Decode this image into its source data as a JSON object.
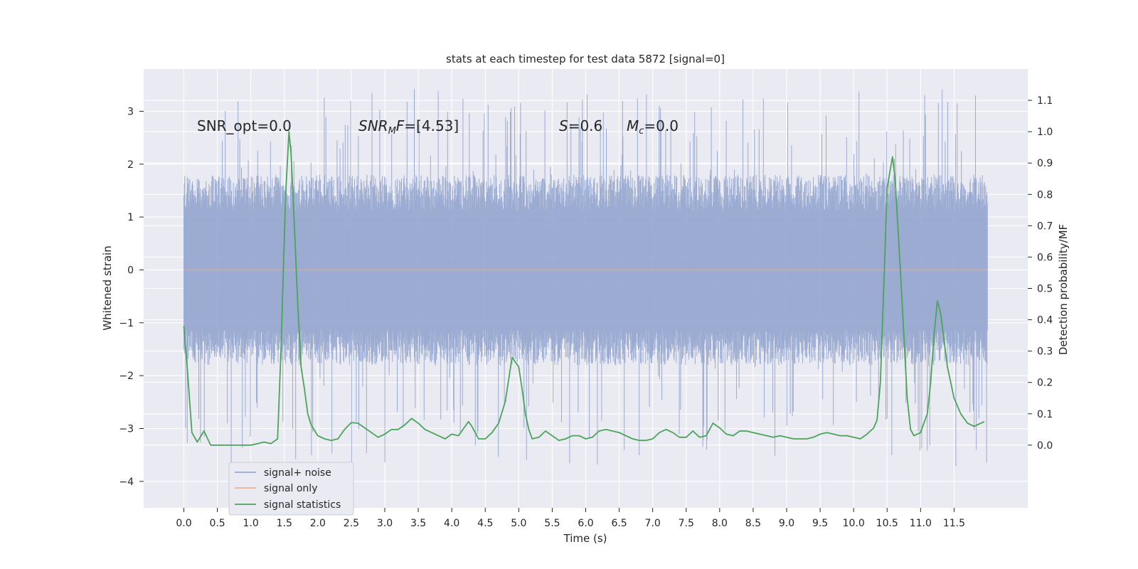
{
  "chart_data": {
    "type": "line",
    "title": "stats at each timestep for test data 5872 [signal=0]",
    "xlabel": "Time (s)",
    "ylabel_left": "Whitened strain",
    "ylabel_right": "Detection probability/MF",
    "xlim": [
      -0.6,
      12.6
    ],
    "ylim_left": [
      -4.5,
      3.8
    ],
    "ylim_right": [
      -0.2,
      1.2
    ],
    "xticks": [
      0.0,
      0.5,
      1.0,
      1.5,
      2.0,
      2.5,
      3.0,
      3.5,
      4.0,
      4.5,
      5.0,
      5.5,
      6.0,
      6.5,
      7.0,
      7.5,
      8.0,
      8.5,
      9.0,
      9.5,
      10.0,
      10.5,
      11.0,
      11.5
    ],
    "xtick_labels": [
      "0.0",
      "0.5",
      "1.0",
      "1.5",
      "2.0",
      "2.5",
      "3.0",
      "3.5",
      "4.0",
      "4.5",
      "5.0",
      "5.5",
      "6.0",
      "6.5",
      "7.0",
      "7.5",
      "8.0",
      "8.5",
      "9.0",
      "9.5",
      "10.0",
      "10.5",
      "11.0",
      "11.5"
    ],
    "yticks_left": [
      3,
      2,
      1,
      0,
      -1,
      -2,
      -3,
      -4
    ],
    "ytick_labels_left": [
      "3",
      "2",
      "1",
      "0",
      "−1",
      "−2",
      "−3",
      "−4"
    ],
    "yticks_right": [
      1.1,
      1.0,
      0.9,
      0.8,
      0.7,
      0.6,
      0.5,
      0.4,
      0.3,
      0.2,
      0.1,
      0.0
    ],
    "ytick_labels_right": [
      "1.1",
      "1.0",
      "0.9",
      "0.8",
      "0.7",
      "0.6",
      "0.5",
      "0.4",
      "0.3",
      "0.2",
      "0.1",
      "0.0"
    ],
    "grid": true,
    "legend_position": "lower-left",
    "annotations": [
      "SNR_opt=0.0",
      "SNR_MF=[4.53]",
      "S=0.6",
      "M_c=0.0"
    ],
    "series": [
      {
        "name": "signal+ noise",
        "color": "#8da0cb",
        "axis": "left",
        "kind": "dense-noise",
        "x_range": [
          0.0,
          12.0
        ],
        "typical_envelope": [
          -1.5,
          1.5
        ],
        "extremes": [
          -4.1,
          3.5
        ]
      },
      {
        "name": "signal only",
        "color": "#e8a88a",
        "axis": "left",
        "x": [
          0.0,
          12.0
        ],
        "y": [
          0.0,
          0.0
        ]
      },
      {
        "name": "signal statistics",
        "color": "#4aa45a",
        "axis": "right",
        "x": [
          0.0,
          0.05,
          0.12,
          0.2,
          0.3,
          0.4,
          0.5,
          0.7,
          0.9,
          1.0,
          1.1,
          1.2,
          1.3,
          1.4,
          1.45,
          1.52,
          1.57,
          1.6,
          1.65,
          1.7,
          1.75,
          1.8,
          1.85,
          1.9,
          2.0,
          2.1,
          2.2,
          2.3,
          2.4,
          2.5,
          2.6,
          2.7,
          2.8,
          2.9,
          3.0,
          3.1,
          3.2,
          3.3,
          3.4,
          3.5,
          3.6,
          3.7,
          3.8,
          3.9,
          4.0,
          4.1,
          4.2,
          4.25,
          4.3,
          4.4,
          4.5,
          4.6,
          4.7,
          4.8,
          4.9,
          5.0,
          5.05,
          5.1,
          5.15,
          5.2,
          5.3,
          5.4,
          5.5,
          5.6,
          5.7,
          5.8,
          5.9,
          6.0,
          6.1,
          6.2,
          6.3,
          6.4,
          6.5,
          6.6,
          6.7,
          6.8,
          6.9,
          7.0,
          7.1,
          7.2,
          7.3,
          7.4,
          7.5,
          7.6,
          7.7,
          7.8,
          7.9,
          8.0,
          8.1,
          8.2,
          8.3,
          8.4,
          8.5,
          8.6,
          8.7,
          8.8,
          8.9,
          9.0,
          9.1,
          9.2,
          9.3,
          9.4,
          9.5,
          9.6,
          9.7,
          9.8,
          9.9,
          10.0,
          10.1,
          10.2,
          10.3,
          10.35,
          10.4,
          10.45,
          10.5,
          10.58,
          10.62,
          10.7,
          10.75,
          10.8,
          10.85,
          10.9,
          11.0,
          11.1,
          11.15,
          11.2,
          11.25,
          11.3,
          11.4,
          11.5,
          11.6,
          11.7,
          11.8,
          11.9,
          11.95
        ],
        "y": [
          0.38,
          0.25,
          0.04,
          0.01,
          0.045,
          0.0,
          0.0,
          0.0,
          0.0,
          0.0,
          0.005,
          0.01,
          0.005,
          0.02,
          0.3,
          0.8,
          1.0,
          0.93,
          0.7,
          0.45,
          0.25,
          0.18,
          0.1,
          0.065,
          0.03,
          0.02,
          0.015,
          0.02,
          0.05,
          0.072,
          0.07,
          0.055,
          0.04,
          0.025,
          0.035,
          0.05,
          0.05,
          0.065,
          0.085,
          0.07,
          0.05,
          0.04,
          0.03,
          0.02,
          0.035,
          0.03,
          0.06,
          0.075,
          0.06,
          0.02,
          0.02,
          0.04,
          0.07,
          0.14,
          0.28,
          0.25,
          0.18,
          0.1,
          0.05,
          0.02,
          0.025,
          0.045,
          0.03,
          0.015,
          0.02,
          0.03,
          0.03,
          0.02,
          0.025,
          0.045,
          0.05,
          0.045,
          0.04,
          0.03,
          0.02,
          0.015,
          0.015,
          0.02,
          0.04,
          0.05,
          0.04,
          0.025,
          0.025,
          0.045,
          0.025,
          0.03,
          0.07,
          0.055,
          0.035,
          0.03,
          0.045,
          0.045,
          0.04,
          0.035,
          0.03,
          0.025,
          0.03,
          0.025,
          0.02,
          0.02,
          0.02,
          0.025,
          0.035,
          0.04,
          0.035,
          0.03,
          0.03,
          0.025,
          0.02,
          0.035,
          0.055,
          0.08,
          0.2,
          0.5,
          0.82,
          0.92,
          0.85,
          0.55,
          0.35,
          0.15,
          0.05,
          0.03,
          0.04,
          0.1,
          0.2,
          0.35,
          0.46,
          0.42,
          0.25,
          0.15,
          0.1,
          0.07,
          0.06,
          0.07,
          0.075
        ]
      }
    ]
  }
}
